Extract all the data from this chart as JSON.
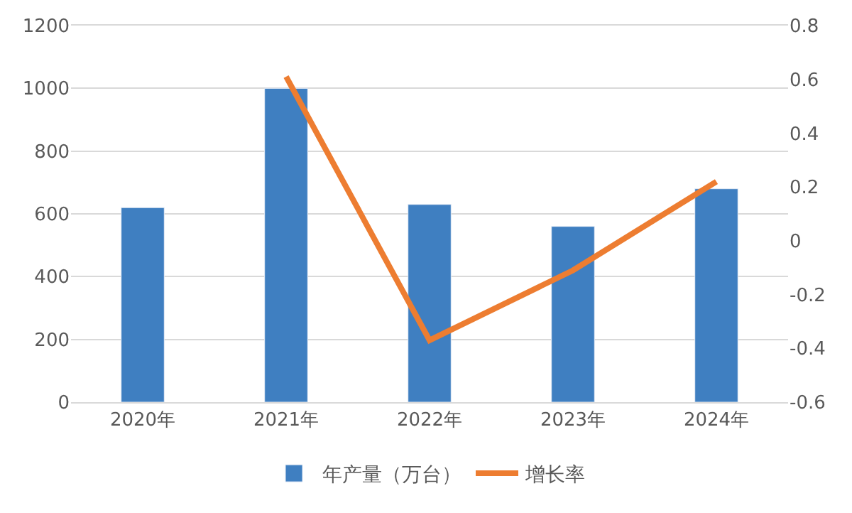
{
  "chart_data": {
    "type": "bar",
    "categories": [
      "2020年",
      "2021年",
      "2022年",
      "2023年",
      "2024年"
    ],
    "series": [
      {
        "name": "年产量（万台）",
        "color": "#3f7fc1",
        "values": [
          620,
          1000,
          630,
          560,
          680
        ]
      },
      {
        "name": "增长率",
        "type": "line",
        "axis": "y2",
        "color": "#ed7d31",
        "values": [
          null,
          0.61,
          -0.37,
          -0.11,
          0.22
        ]
      }
    ],
    "ylim": [
      0,
      1200
    ],
    "yticks": [
      0,
      200,
      400,
      600,
      800,
      1000,
      1200
    ],
    "y2lim": [
      -0.6,
      0.8
    ],
    "y2ticks": [
      -0.6,
      -0.4,
      -0.2,
      0,
      0.2,
      0.4,
      0.6,
      0.8
    ],
    "grid": "y",
    "legend": "bottom",
    "marker": "none",
    "line_style": "solid"
  }
}
